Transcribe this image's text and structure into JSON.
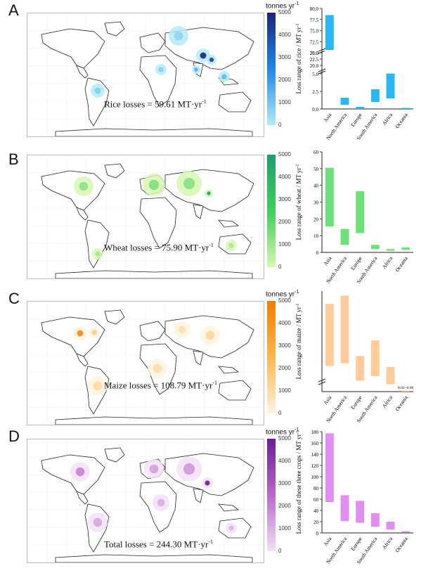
{
  "panels": [
    {
      "letter": "A",
      "losses_text": "Rice losses = 59.61 MT·yr",
      "losses_sup": "-1",
      "colorbar": {
        "title": "tonnes yr",
        "title_sup": "-1",
        "ticks": [
          "5000",
          "4000",
          "3000",
          "2000",
          "1000",
          "0"
        ],
        "top": "#1a237e",
        "mid": "#1e88e5",
        "bottom": "#b3ecf7"
      },
      "bar_color": "#29b6f6"
    },
    {
      "letter": "B",
      "losses_text": "Wheat losses = 75.90 MT·yr",
      "losses_sup": "-1",
      "colorbar": {
        "title": "",
        "title_sup": "",
        "ticks": [
          "5000",
          "4000",
          "3000",
          "2000",
          "1000",
          "0"
        ],
        "top": "#1f9e6e",
        "mid": "#3fcf5a",
        "bottom": "#d7f7b0"
      },
      "bar_color": "#6ee07a"
    },
    {
      "letter": "C",
      "losses_text": "Maize losses = 108.79 MT·yr",
      "losses_sup": "-1",
      "colorbar": {
        "title": "tonnes yr",
        "title_sup": "-1",
        "ticks": [
          "5000",
          "4000",
          "3000",
          "2000",
          "1000",
          "0"
        ],
        "top": "#f57c00",
        "mid": "#ffb74d",
        "bottom": "#fff3e0"
      },
      "bar_color": "#ffcc99"
    },
    {
      "letter": "D",
      "losses_text": "Total losses = 244.30 MT·yr",
      "losses_sup": "-1",
      "colorbar": {
        "title": "tonnes yr",
        "title_sup": "-1",
        "ticks": [
          "5000",
          "4000",
          "3000",
          "2000",
          "1000",
          "0"
        ],
        "top": "#6a1b9a",
        "mid": "#ba68c8",
        "bottom": "#f3e0f7"
      },
      "bar_color": "#e08ef0"
    }
  ],
  "chart_data": [
    {
      "type": "bar",
      "title": "",
      "ylabel": "Loss range of rice / MT yr",
      "ylabel_sup": "-1",
      "categories": [
        "Asia",
        "North America",
        "Europe",
        "South America",
        "Africa",
        "Oceania"
      ],
      "ranges": [
        [
          25.0,
          78.5
        ],
        [
          0.6,
          1.6
        ],
        [
          0.1,
          0.3
        ],
        [
          1.0,
          2.8
        ],
        [
          1.5,
          5.5
        ],
        [
          0.0,
          0.05
        ]
      ],
      "yaxis": {
        "broken": true,
        "lower": [
          0,
          5
        ],
        "upper": [
          22.5,
          80
        ],
        "lower_ticks": [
          "0.0",
          "2.5",
          "5.0"
        ],
        "upper_ticks": [
          "20.0",
          "22.5",
          "25.0",
          "70.0",
          "72.5",
          "75.0",
          "77.5",
          "80.0"
        ]
      }
    },
    {
      "type": "bar",
      "title": "",
      "ylabel": "Loss range of wheat / MT yr",
      "ylabel_sup": "-1",
      "categories": [
        "Asia",
        "North America",
        "Europe",
        "South America",
        "Africa",
        "Oceania"
      ],
      "ranges": [
        [
          15.5,
          50.5
        ],
        [
          4.5,
          14.0
        ],
        [
          11.5,
          36.5
        ],
        [
          2.0,
          4.5
        ],
        [
          1.0,
          2.0
        ],
        [
          1.5,
          3.0
        ]
      ],
      "ylim": [
        0,
        60
      ],
      "ticks": [
        "0",
        "10",
        "20",
        "30",
        "40",
        "50",
        "60"
      ]
    },
    {
      "type": "bar",
      "title": "",
      "ylabel": "Loss range of maize / MT yr",
      "ylabel_sup": "-1",
      "categories": [
        "Asia",
        "North America",
        "Europe",
        "South America",
        "Africa",
        "Oceania"
      ],
      "ranges": [
        [
          14.0,
          48.0
        ],
        [
          15.5,
          52.5
        ],
        [
          6.0,
          19.5
        ],
        [
          8.5,
          28.0
        ],
        [
          4.0,
          13.5
        ],
        [
          0.02,
          0.06
        ]
      ],
      "ylim": [
        0,
        55
      ],
      "ticks": [],
      "annotation": "0.02~0.06"
    },
    {
      "type": "bar",
      "title": "",
      "ylabel": "Loss range of these three crops / MT yr",
      "ylabel_sup": "-1",
      "categories": [
        "Asia",
        "North America",
        "Europe",
        "South America",
        "Africa",
        "Oceania"
      ],
      "ranges": [
        [
          55,
          177
        ],
        [
          21,
          67
        ],
        [
          18,
          57
        ],
        [
          11,
          35
        ],
        [
          6,
          20
        ],
        [
          1,
          3
        ]
      ],
      "ylim": [
        0,
        180
      ],
      "ticks": [
        "0",
        "20",
        "40",
        "60",
        "80",
        "100",
        "120",
        "140",
        "160",
        "180"
      ]
    }
  ]
}
